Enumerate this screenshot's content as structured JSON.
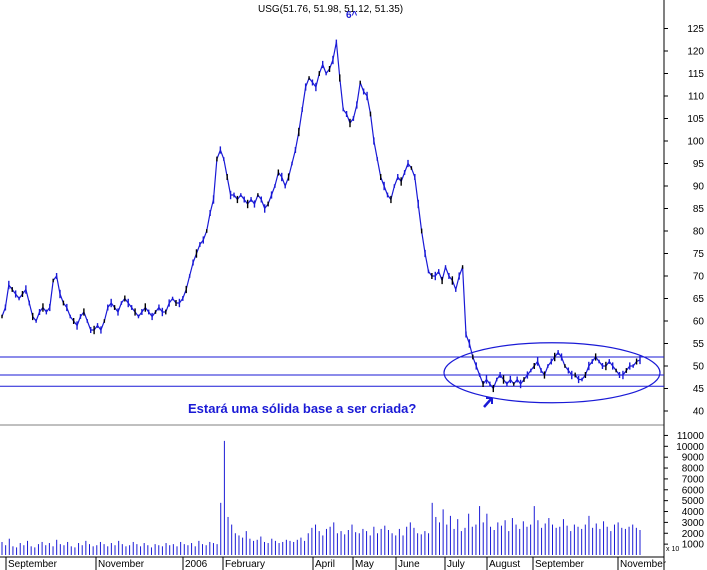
{
  "chart_data": {
    "type": "line",
    "title": "USG(51.76, 51.98, 51.12, 51.35)",
    "annotation": "Estará uma sólida base a ser criada?",
    "price_axis": {
      "ylim": [
        38,
        128
      ],
      "ticks": [
        "125",
        "120",
        "115",
        "110",
        "105",
        "100",
        "95",
        "90",
        "85",
        "80",
        "75",
        "70",
        "65",
        "60",
        "55",
        "50",
        "45",
        "40"
      ]
    },
    "volume_axis": {
      "ylim": [
        0,
        11500
      ],
      "ticks": [
        "11000",
        "10000",
        "9000",
        "8000",
        "7000",
        "6000",
        "5000",
        "4000",
        "3000",
        "2000",
        "1000"
      ],
      "unit_label": "x 10"
    },
    "x_axis": {
      "month_labels": [
        "September",
        "November",
        "2006",
        "February",
        "April",
        "May",
        "June",
        "July",
        "August",
        "September",
        "November"
      ]
    },
    "horizontal_lines": [
      52.0,
      48.0,
      45.5
    ],
    "ellipse": {
      "center": [
        48.5
      ],
      "note": "range 44–55"
    },
    "price_series": {
      "name": "USG",
      "values": [
        61,
        63,
        68,
        67,
        66,
        65,
        66,
        67,
        64,
        61,
        60,
        62,
        63,
        62,
        63,
        69,
        70,
        66,
        64,
        63,
        61,
        60,
        59,
        61,
        62,
        60,
        58,
        58,
        59,
        58,
        60,
        63,
        64,
        63,
        62,
        64,
        65,
        64,
        63,
        62,
        61,
        62,
        63,
        62,
        61,
        62,
        63,
        62,
        62,
        64,
        65,
        64,
        64,
        65,
        67,
        70,
        73,
        75,
        77,
        78,
        80,
        84,
        87,
        96,
        98,
        96,
        92,
        88,
        88,
        87,
        88,
        87,
        86,
        87,
        86,
        88,
        87,
        85,
        86,
        88,
        90,
        93,
        92,
        90,
        92,
        95,
        98,
        102,
        107,
        112,
        114,
        113,
        112,
        115,
        117,
        115,
        116,
        118,
        122,
        114,
        107,
        106,
        104,
        105,
        108,
        113,
        111,
        110,
        106,
        100,
        96,
        92,
        90,
        88,
        87,
        90,
        92,
        91,
        93,
        95,
        94,
        92,
        86,
        80,
        75,
        71,
        70,
        70,
        71,
        69,
        72,
        70,
        69,
        67,
        70,
        72,
        57,
        55,
        52,
        50,
        48,
        46,
        47,
        46,
        45,
        47,
        48,
        47,
        46,
        47,
        46,
        47,
        46,
        47,
        48,
        49,
        50,
        51,
        49,
        48,
        50,
        51,
        52,
        53,
        52,
        50,
        49,
        48,
        48,
        47,
        47,
        48,
        50,
        51,
        52,
        51,
        50,
        50,
        51,
        50,
        49,
        48,
        48,
        49,
        50,
        50,
        51,
        51.35
      ]
    },
    "volume_series": {
      "name": "Volume",
      "note": "values in x10 shares",
      "values": [
        1200,
        900,
        1500,
        800,
        700,
        1100,
        900,
        1300,
        800,
        700,
        1000,
        1200,
        900,
        1100,
        800,
        1400,
        1000,
        900,
        1200,
        800,
        700,
        1100,
        900,
        1300,
        1000,
        800,
        900,
        1200,
        1000,
        800,
        1100,
        900,
        1300,
        1000,
        800,
        900,
        1200,
        1000,
        800,
        1100,
        900,
        700,
        1000,
        900,
        800,
        1100,
        900,
        1000,
        800,
        1200,
        1000,
        900,
        1100,
        800,
        1300,
        1000,
        900,
        1200,
        1100,
        1000,
        4800,
        10500,
        3500,
        2800,
        2000,
        1800,
        1600,
        2200,
        1500,
        1300,
        1400,
        1700,
        1200,
        1100,
        1500,
        1300,
        1100,
        1200,
        1400,
        1300,
        1200,
        1400,
        1600,
        1300,
        2000,
        2500,
        2800,
        2200,
        1800,
        2400,
        2600,
        3000,
        2000,
        2200,
        1900,
        2300,
        2800,
        2100,
        2000,
        2400,
        2200,
        1800,
        2600,
        2000,
        2400,
        2700,
        2300,
        2000,
        1800,
        2400,
        1800,
        2600,
        3000,
        2500,
        2000,
        1900,
        2200,
        2000,
        4800,
        3500,
        3000,
        4200,
        2800,
        3600,
        2400,
        3300,
        2200,
        2500,
        3800,
        2600,
        2800,
        4500,
        3000,
        3800,
        2600,
        2300,
        3000,
        2700,
        3200,
        2200,
        3400,
        2800,
        2400,
        3100,
        2600,
        2800,
        4500,
        3200,
        2500,
        2900,
        3400,
        2800,
        2500,
        2600,
        3300,
        2700,
        2200,
        2800,
        2600,
        2400,
        2800,
        3600,
        2500,
        2900,
        2400,
        3100,
        2600,
        2200,
        2800,
        3000,
        2500,
        2400,
        2600,
        2800,
        2500,
        2300
      ]
    }
  },
  "colors": {
    "price": "#1a1ad6",
    "black": "#000000",
    "grid": "#000000",
    "ellipse": "#1a1ad6",
    "background": "#ffffff"
  }
}
